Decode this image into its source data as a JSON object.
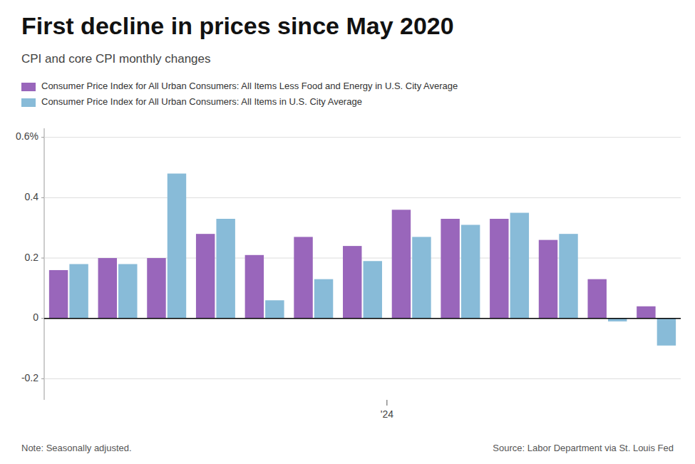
{
  "chart_data": {
    "type": "bar",
    "title": "First decline in prices since May 2020",
    "subtitle": "CPI and core CPI monthly changes",
    "note": "Note: Seasonally adjusted.",
    "source": "Source: Labor Department via St. Louis Fed",
    "categories": [
      null,
      null,
      null,
      null,
      null,
      null,
      null,
      null,
      null,
      null,
      null,
      null,
      null
    ],
    "xticks": [
      {
        "value": 6.5,
        "label": "'24"
      }
    ],
    "series": [
      {
        "name": "Consumer Price Index for All Urban Consumers: All Items Less Food and Energy in U.S. City Average",
        "color": "#9966bb",
        "values": [
          0.16,
          0.2,
          0.2,
          0.28,
          0.21,
          0.27,
          0.24,
          0.36,
          0.33,
          0.33,
          0.26,
          0.13,
          0.04
        ]
      },
      {
        "name": "Consumer Price Index for All Urban Consumers: All Items in U.S. City Average",
        "color": "#88bbd8",
        "values": [
          0.18,
          0.18,
          0.48,
          0.33,
          0.06,
          0.13,
          0.19,
          0.27,
          0.31,
          0.35,
          0.28,
          -0.01,
          -0.09
        ]
      }
    ],
    "ylim": [
      -0.27,
      0.63
    ],
    "yticks": [
      -0.2,
      0,
      0.2,
      0.4,
      {
        "value": 0.6,
        "label": "0.6%"
      }
    ],
    "grid": true,
    "legend": "top-left"
  }
}
